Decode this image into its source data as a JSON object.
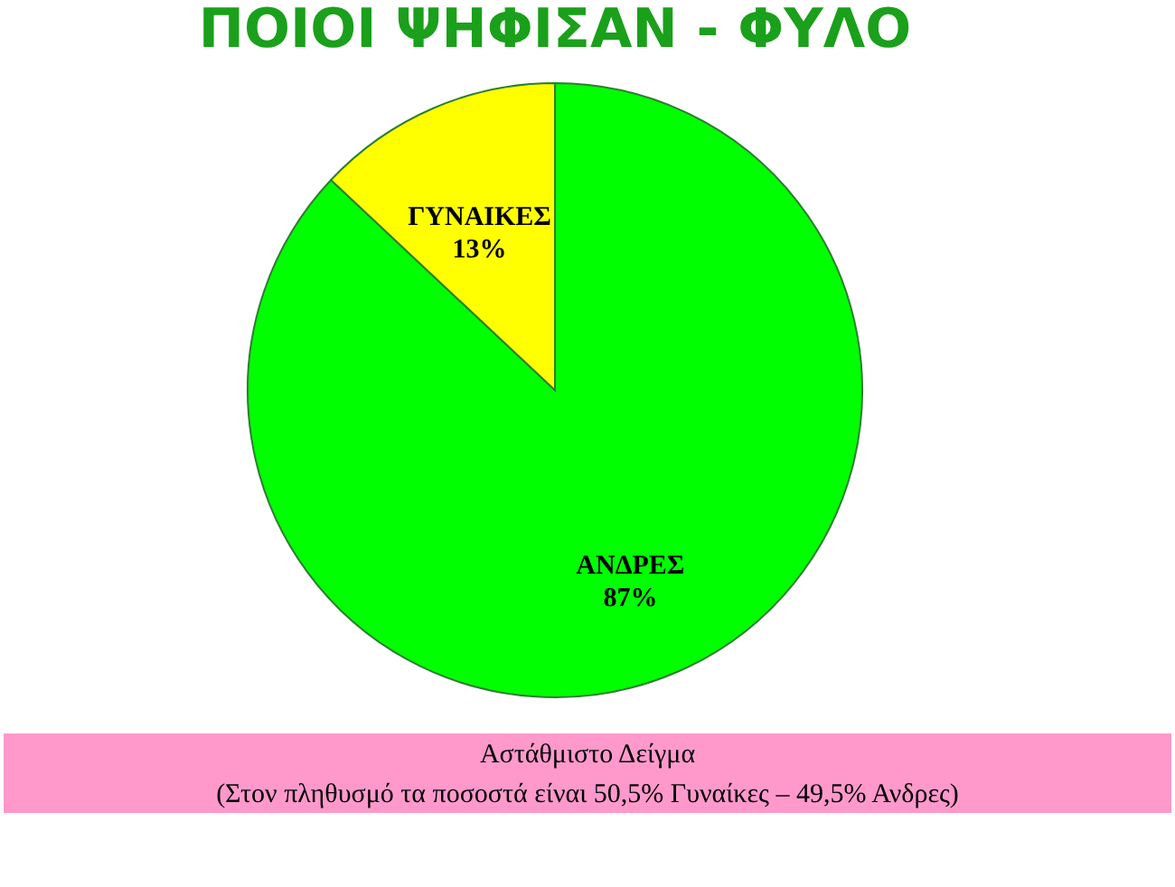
{
  "chart_data": {
    "type": "pie",
    "title": "ΠΟΙΟΙ ΨΗΦΙΣΑΝ - ΦΥΛΟ",
    "categories": [
      "ΑΝΔΡΕΣ",
      "ΓΥΝΑΙΚΕΣ"
    ],
    "values": [
      87,
      13
    ],
    "value_labels": [
      "87%",
      "13%"
    ],
    "colors": [
      "#00ff00",
      "#ffff00"
    ],
    "legend": false,
    "annotations": [
      "Αστάθμιστο Δείγμα",
      "(Στον πληθυσμό τα ποσοστά είναι 50,5% Γυναίκες – 49,5% Ανδρες)"
    ]
  }
}
